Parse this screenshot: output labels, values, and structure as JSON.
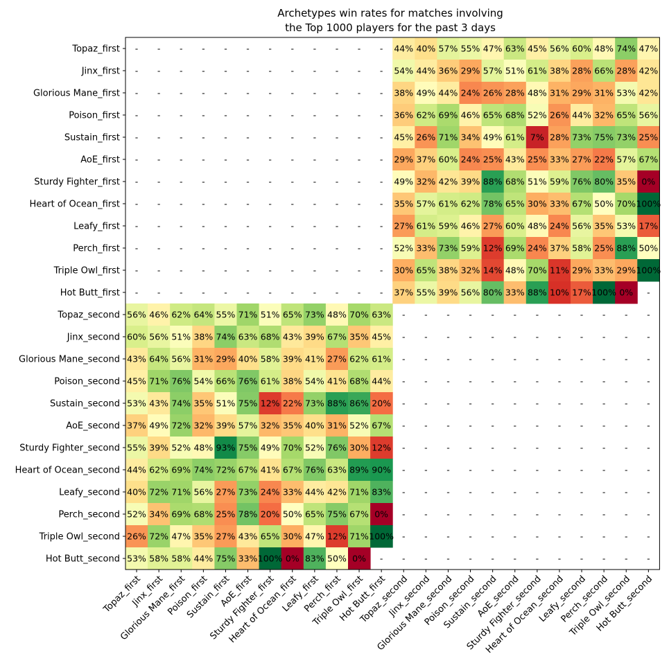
{
  "chart_data": {
    "type": "heatmap",
    "title": [
      "Archetypes win rates for matches involving",
      "the Top 1000 players for the past 3 days"
    ],
    "row_labels": [
      "Topaz_first",
      "Jinx_first",
      "Glorious Mane_first",
      "Poison_first",
      "Sustain_first",
      "AoE_first",
      "Sturdy Fighter_first",
      "Heart of Ocean_first",
      "Leafy_first",
      "Perch_first",
      "Triple Owl_first",
      "Hot Butt_first",
      "Topaz_second",
      "Jinx_second",
      "Glorious Mane_second",
      "Poison_second",
      "Sustain_second",
      "AoE_second",
      "Sturdy Fighter_second",
      "Heart of Ocean_second",
      "Leafy_second",
      "Perch_second",
      "Triple Owl_second",
      "Hot Butt_second"
    ],
    "col_labels": [
      "Topaz_first",
      "Jinx_first",
      "Glorious Mane_first",
      "Poison_first",
      "Sustain_first",
      "AoE_first",
      "Sturdy Fighter_first",
      "Heart of Ocean_first",
      "Leafy_first",
      "Perch_first",
      "Triple Owl_first",
      "Hot Butt_first",
      "Topaz_second",
      "Jinx_second",
      "Glorious Mane_second",
      "Poison_second",
      "Sustain_second",
      "AoE_second",
      "Sturdy Fighter_second",
      "Heart of Ocean_second",
      "Leafy_second",
      "Perch_second",
      "Triple Owl_second",
      "Hot Butt_second"
    ],
    "empty_marker": "-",
    "colormap": "RdYlGn",
    "value_range": [
      0,
      100
    ],
    "unit": "%",
    "top_right_values": [
      [
        44,
        40,
        57,
        55,
        47,
        63,
        45,
        56,
        60,
        48,
        74,
        47
      ],
      [
        54,
        44,
        36,
        29,
        57,
        51,
        61,
        38,
        28,
        66,
        28,
        42
      ],
      [
        38,
        49,
        44,
        24,
        26,
        28,
        48,
        31,
        29,
        31,
        53,
        42
      ],
      [
        36,
        62,
        69,
        46,
        65,
        68,
        52,
        26,
        44,
        32,
        65,
        56
      ],
      [
        45,
        26,
        71,
        34,
        49,
        61,
        7,
        28,
        73,
        75,
        73,
        25
      ],
      [
        29,
        37,
        60,
        24,
        25,
        43,
        25,
        33,
        27,
        22,
        57,
        67
      ],
      [
        49,
        32,
        42,
        39,
        88,
        68,
        51,
        59,
        76,
        80,
        35,
        0
      ],
      [
        35,
        57,
        61,
        62,
        78,
        65,
        30,
        33,
        67,
        50,
        70,
        100
      ],
      [
        27,
        61,
        59,
        46,
        27,
        60,
        48,
        24,
        56,
        35,
        53,
        17
      ],
      [
        52,
        33,
        73,
        59,
        12,
        69,
        24,
        37,
        58,
        25,
        88,
        50
      ],
      [
        30,
        65,
        38,
        32,
        14,
        48,
        70,
        11,
        29,
        33,
        29,
        100
      ],
      [
        37,
        55,
        39,
        56,
        80,
        33,
        88,
        10,
        17,
        100,
        0,
        null
      ]
    ],
    "bottom_left_values": [
      [
        56,
        46,
        62,
        64,
        55,
        71,
        51,
        65,
        73,
        48,
        70,
        63
      ],
      [
        60,
        56,
        51,
        38,
        74,
        63,
        68,
        43,
        39,
        67,
        35,
        45
      ],
      [
        43,
        64,
        56,
        31,
        29,
        40,
        58,
        39,
        41,
        27,
        62,
        61
      ],
      [
        45,
        71,
        76,
        54,
        66,
        76,
        61,
        38,
        54,
        41,
        68,
        44
      ],
      [
        53,
        43,
        74,
        35,
        51,
        75,
        12,
        22,
        73,
        88,
        86,
        20
      ],
      [
        37,
        49,
        72,
        32,
        39,
        57,
        32,
        35,
        40,
        31,
        52,
        67
      ],
      [
        55,
        39,
        52,
        48,
        93,
        75,
        49,
        70,
        52,
        76,
        30,
        12
      ],
      [
        44,
        62,
        69,
        74,
        72,
        67,
        41,
        67,
        76,
        63,
        89,
        90
      ],
      [
        40,
        72,
        71,
        56,
        27,
        73,
        24,
        33,
        44,
        42,
        71,
        83
      ],
      [
        52,
        34,
        69,
        68,
        25,
        78,
        20,
        50,
        65,
        75,
        67,
        0
      ],
      [
        26,
        72,
        47,
        35,
        27,
        43,
        65,
        30,
        47,
        12,
        71,
        100
      ],
      [
        53,
        58,
        58,
        44,
        75,
        33,
        100,
        0,
        83,
        50,
        0,
        null
      ]
    ]
  }
}
